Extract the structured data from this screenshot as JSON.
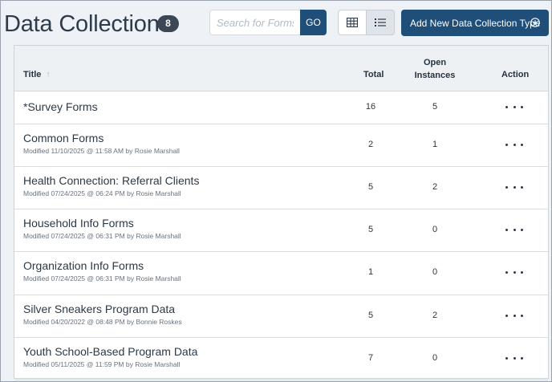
{
  "header": {
    "title": "Data Collection",
    "count": "8",
    "search_placeholder": "Search for Forms",
    "go_label": "GO",
    "add_label": "Add New Data Collection Type"
  },
  "table": {
    "columns": {
      "title": "Title",
      "total": "Total",
      "open_line1": "Open",
      "open_line2": "Instances",
      "action": "Action"
    },
    "rows": [
      {
        "title": "*Survey Forms",
        "meta": "",
        "total": "16",
        "open": "5"
      },
      {
        "title": "Common Forms",
        "meta": "Modified 11/10/2025 @ 11:58 AM by Rosie Marshall",
        "total": "2",
        "open": "1"
      },
      {
        "title": "Health Connection: Referral Clients",
        "meta": "Modified 07/24/2025 @ 06:24 PM by Rosie Marshall",
        "total": "5",
        "open": "2"
      },
      {
        "title": "Household Info Forms",
        "meta": "Modified 07/24/2025 @ 06:31 PM by Rosie Marshall",
        "total": "5",
        "open": "0"
      },
      {
        "title": "Organization Info Forms",
        "meta": "Modified 07/24/2025 @ 06:31 PM by Rosie Marshall",
        "total": "1",
        "open": "0"
      },
      {
        "title": "Silver Sneakers Program Data",
        "meta": "Modified 04/20/2022 @ 08:48 PM by Bonnie Roskes",
        "total": "5",
        "open": "2"
      },
      {
        "title": "Youth School-Based Program Data",
        "meta": "Modified 05/11/2025 @ 11:59 PM by Rosie Marshall",
        "total": "7",
        "open": "0"
      }
    ]
  },
  "icons": {
    "sort": "sort-up-arrow-icon",
    "grid": "grid-view-icon",
    "list": "list-view-icon",
    "add": "plus-circle-icon",
    "action": "ellipsis-icon"
  },
  "colors": {
    "primary": "#1f4e79",
    "badge": "#3b4754",
    "background": "#eef1f5"
  }
}
